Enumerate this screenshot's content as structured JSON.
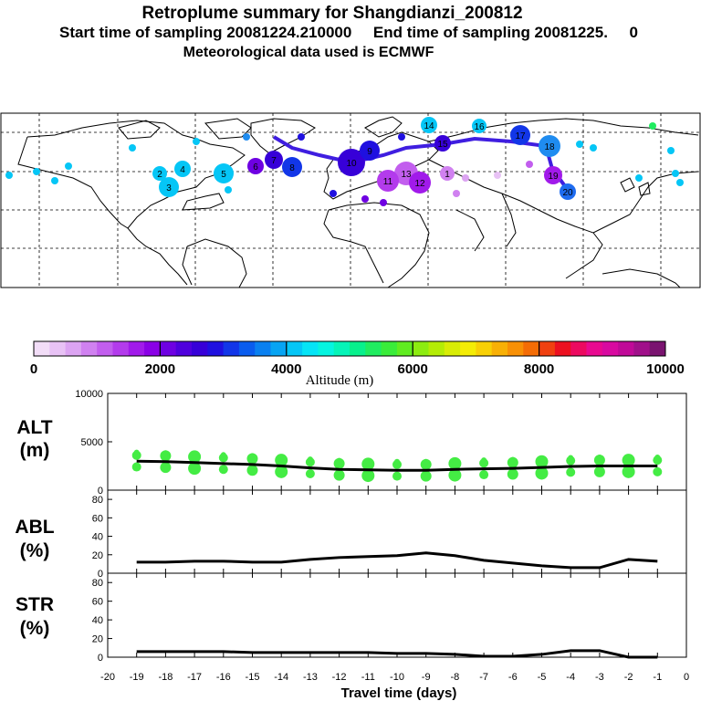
{
  "header": {
    "line1": "Retroplume summary for Shangdianzi_200812",
    "line2": "Start time of sampling 20081224.210000     End time of sampling 20081225.     0",
    "line3": "Meteorological data used is ECMWF"
  },
  "colorbar": {
    "ticks": [
      "0",
      "2000",
      "4000",
      "6000",
      "8000",
      "10000"
    ],
    "label": "Altitude (m)",
    "colors": [
      "#f2ddf7",
      "#e8c2f5",
      "#dca4f2",
      "#d081f0",
      "#c25eee",
      "#b33bec",
      "#a11aea",
      "#8a00e6",
      "#6e00e2",
      "#4f00dd",
      "#3700d8",
      "#1f10e0",
      "#1236e8",
      "#0a5cee",
      "#0a80f0",
      "#07a4f3",
      "#05c6f6",
      "#05e4f6",
      "#05f4e0",
      "#05f4b8",
      "#08f08c",
      "#20ec60",
      "#3aec3a",
      "#60ec20",
      "#8cec10",
      "#b4ec05",
      "#d8ec05",
      "#f4ec05",
      "#f8d005",
      "#f8b005",
      "#f89005",
      "#f46c05",
      "#f04010",
      "#ec1020",
      "#ec0a60",
      "#e80a90",
      "#d80aa0",
      "#c00a98",
      "#a0108a",
      "#7a1470"
    ]
  },
  "map": {
    "cluster_labels": [
      "20",
      "19",
      "18",
      "17",
      "16",
      "15",
      "14",
      "13",
      "12",
      "11",
      "10",
      "9",
      "8",
      "7",
      "6",
      "5",
      "4",
      "3",
      "2",
      "1"
    ]
  },
  "chart_data": [
    {
      "type": "line",
      "name": "ALT",
      "ylabel_line1": "ALT",
      "ylabel_line2": "(m)",
      "ylim": [
        0,
        10000
      ],
      "yticks": [
        "10000",
        "5000",
        "0"
      ],
      "x": [
        -19,
        -18,
        -17,
        -16,
        -15,
        -14,
        -13,
        -12,
        -11,
        -10,
        -9,
        -8,
        -7,
        -6,
        -5,
        -4,
        -3,
        -2,
        -1
      ],
      "values": [
        3000,
        2950,
        2850,
        2750,
        2650,
        2500,
        2300,
        2150,
        2100,
        2050,
        2050,
        2150,
        2200,
        2250,
        2350,
        2450,
        2500,
        2500,
        2500
      ],
      "scatter_color": "#44ec44"
    },
    {
      "type": "line",
      "name": "ABL",
      "ylabel_line1": "ABL",
      "ylabel_line2": "(%)",
      "ylim": [
        0,
        90
      ],
      "yticks": [
        "80",
        "60",
        "40",
        "20",
        "0"
      ],
      "x": [
        -19,
        -18,
        -17,
        -16,
        -15,
        -14,
        -13,
        -12,
        -11,
        -10,
        -9,
        -8,
        -7,
        -6,
        -5,
        -4,
        -3,
        -2,
        -1
      ],
      "values": [
        12,
        12,
        13,
        13,
        12,
        12,
        15,
        17,
        18,
        19,
        22,
        19,
        14,
        11,
        8,
        6,
        6,
        15,
        13
      ]
    },
    {
      "type": "line",
      "name": "STR",
      "ylabel_line1": "STR",
      "ylabel_line2": "(%)",
      "ylim": [
        0,
        90
      ],
      "yticks": [
        "80",
        "60",
        "40",
        "20",
        "0"
      ],
      "x": [
        -19,
        -18,
        -17,
        -16,
        -15,
        -14,
        -13,
        -12,
        -11,
        -10,
        -9,
        -8,
        -7,
        -6,
        -5,
        -4,
        -3,
        -2,
        -1
      ],
      "values": [
        6,
        6,
        6,
        6,
        5,
        5,
        5,
        5,
        5,
        4,
        4,
        3,
        1,
        1,
        3,
        7,
        7,
        0,
        0
      ]
    }
  ],
  "xaxis": {
    "ticks": [
      "-20",
      "-19",
      "-18",
      "-17",
      "-16",
      "-15",
      "-14",
      "-13",
      "-12",
      "-11",
      "-10",
      "-9",
      "-8",
      "-7",
      "-6",
      "-5",
      "-4",
      "-3",
      "-2",
      "-1",
      "0"
    ],
    "label": "Travel time (days)"
  }
}
